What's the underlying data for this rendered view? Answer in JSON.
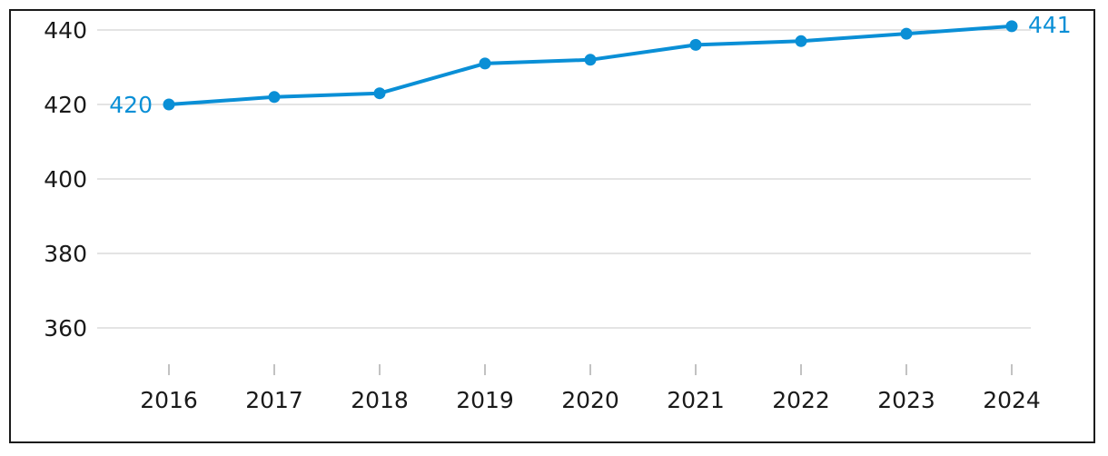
{
  "chart_data": {
    "type": "line",
    "title": "",
    "xlabel": "",
    "ylabel": "",
    "x": [
      "2016",
      "2017",
      "2018",
      "2019",
      "2020",
      "2021",
      "2022",
      "2023",
      "2024"
    ],
    "series": [
      {
        "values": [
          420,
          422,
          423,
          431,
          432,
          436,
          437,
          439,
          441
        ],
        "color": "#0a8fd6"
      }
    ],
    "ylim": [
      350,
      445
    ],
    "yticks": [
      360,
      380,
      400,
      420,
      440
    ],
    "ytick_labels": [
      "360",
      "380",
      "400",
      "420",
      "440"
    ],
    "grid": true,
    "legend": "none",
    "data_labels": {
      "first": "420",
      "last": "441"
    }
  }
}
